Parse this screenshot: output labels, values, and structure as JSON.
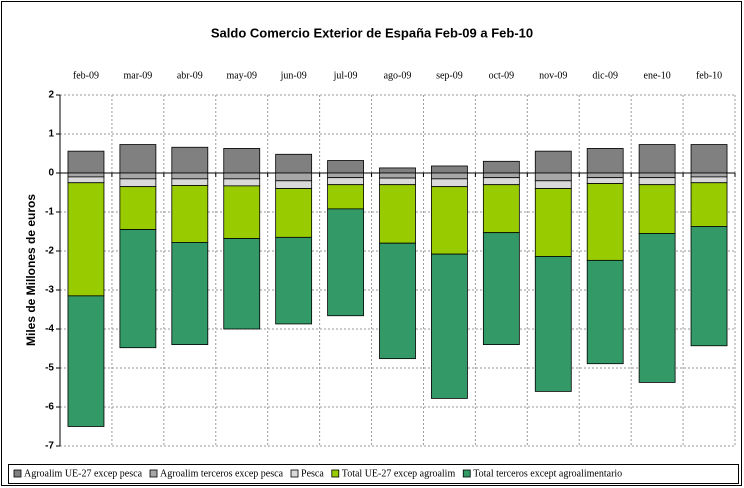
{
  "chart_data": {
    "type": "stacked_bar",
    "title": "Saldo Comercio Exterior de España Feb-09 a Feb-10",
    "y_label": "Miles de Millones de euros",
    "categories": [
      "feb-09",
      "mar-09",
      "abr-09",
      "may-09",
      "jun-09",
      "jul-09",
      "ago-09",
      "sep-09",
      "oct-09",
      "nov-09",
      "dic-09",
      "ene-10",
      "feb-10"
    ],
    "series": [
      {
        "name": "Agroalim UE-27 excep pesca",
        "color": "#808080",
        "values": [
          0.56,
          0.73,
          0.66,
          0.63,
          0.48,
          0.32,
          0.13,
          0.18,
          0.3,
          0.56,
          0.63,
          0.73,
          0.73
        ]
      },
      {
        "name": "Agroalim terceros excep pesca",
        "color": "#a6a6a6",
        "values": [
          -0.1,
          -0.15,
          -0.15,
          -0.15,
          -0.2,
          -0.12,
          -0.13,
          -0.15,
          -0.12,
          -0.2,
          -0.12,
          -0.12,
          -0.1
        ]
      },
      {
        "name": "Pesca",
        "color": "#d9d9d9",
        "values": [
          -0.15,
          -0.2,
          -0.17,
          -0.18,
          -0.2,
          -0.18,
          -0.17,
          -0.2,
          -0.18,
          -0.2,
          -0.15,
          -0.18,
          -0.15
        ]
      },
      {
        "name": "Total UE-27 excep agroalim",
        "color": "#99cc00",
        "values": [
          -2.9,
          -1.1,
          -1.46,
          -1.35,
          -1.25,
          -0.62,
          -1.5,
          -1.73,
          -1.23,
          -1.74,
          -1.97,
          -1.25,
          -1.12
        ]
      },
      {
        "name": "Total terceros except agroalimentario",
        "color": "#339966",
        "values": [
          -3.35,
          -3.03,
          -2.62,
          -2.32,
          -2.22,
          -2.74,
          -2.96,
          -3.7,
          -2.87,
          -3.46,
          -2.65,
          -3.82,
          -3.06
        ]
      }
    ],
    "ylim": [
      -7,
      2
    ],
    "yticks": [
      -7,
      -6,
      -5,
      -4,
      -3,
      -2,
      -1,
      0,
      1,
      2
    ],
    "grid": true,
    "legend": "bottom"
  }
}
